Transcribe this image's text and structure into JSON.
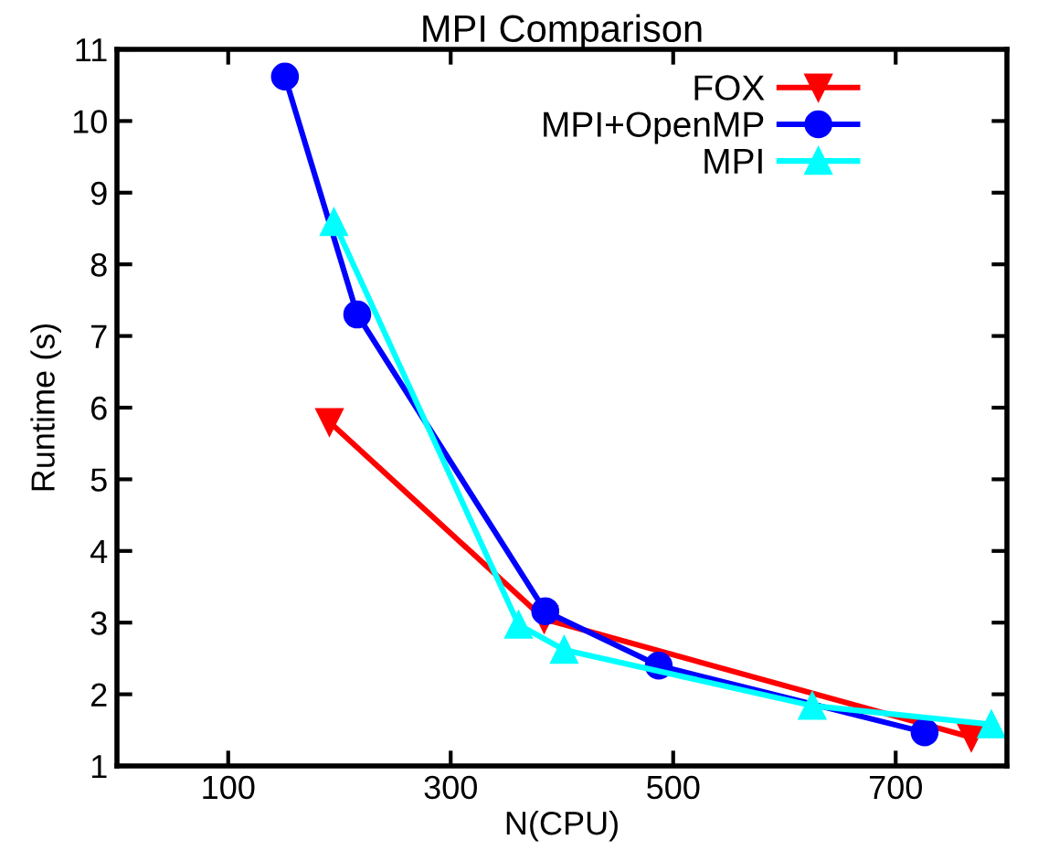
{
  "chart_data": {
    "type": "line",
    "title": "MPI Comparison",
    "xlabel": "N(CPU)",
    "ylabel": "Runtime (s)",
    "xlim": [
      0,
      800
    ],
    "xticks": [
      100,
      300,
      500,
      700
    ],
    "ylim": [
      1,
      11
    ],
    "yticks": [
      1,
      2,
      3,
      4,
      5,
      6,
      7,
      8,
      9,
      10,
      11
    ],
    "grid": false,
    "legend": "top right",
    "line_style": "solid",
    "series": [
      {
        "name": "FOX",
        "color": "#ff0000",
        "marker": "triangle_down",
        "x": [
          191,
          384,
          768
        ],
        "values": [
          5.8,
          3.05,
          1.4
        ]
      },
      {
        "name": "MPI+OpenMP",
        "color": "#0000ff",
        "marker": "circle",
        "x": [
          151,
          216,
          385,
          487,
          726
        ],
        "values": [
          10.62,
          7.3,
          3.16,
          2.4,
          1.47
        ]
      },
      {
        "name": "MPI",
        "color": "#00ffff",
        "marker": "triangle",
        "x": [
          195,
          361,
          402,
          625,
          786
        ],
        "values": [
          8.59,
          2.97,
          2.62,
          1.84,
          1.58
        ]
      }
    ]
  }
}
